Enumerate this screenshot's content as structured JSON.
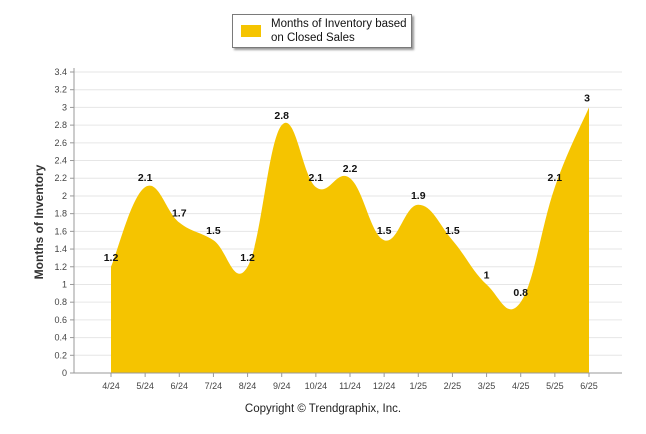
{
  "chart_data": {
    "type": "area",
    "categories": [
      "4/24",
      "5/24",
      "6/24",
      "7/24",
      "8/24",
      "9/24",
      "10/24",
      "11/24",
      "12/24",
      "1/25",
      "2/25",
      "3/25",
      "4/25",
      "5/25",
      "6/25"
    ],
    "series": [
      {
        "name": "Months of Inventory based on Closed Sales",
        "values": [
          1.2,
          2.1,
          1.7,
          1.5,
          1.2,
          2.8,
          2.1,
          2.2,
          1.5,
          1.9,
          1.5,
          1,
          0.8,
          2.1,
          3
        ],
        "labels": [
          "1.2",
          "2.1",
          "1.7",
          "1.5",
          "1.2",
          "2.8",
          "2.1",
          "2.2",
          "1.5",
          "1.9",
          "1.5",
          "1",
          "0.8",
          "2.1",
          "3"
        ],
        "color": "#f5c400"
      }
    ],
    "yticks": [
      "0",
      "0.2",
      "0.4",
      "0.6",
      "0.8",
      "1",
      "1.2",
      "1.4",
      "1.6",
      "1.8",
      "2",
      "2.2",
      "2.4",
      "2.6",
      "2.8",
      "3",
      "3.2",
      "3.4"
    ],
    "ylim": [
      0,
      3.4
    ],
    "ylabel": "Months of Inventory",
    "xlabel": "",
    "grid": true,
    "legend": "top-center"
  },
  "legend": {
    "line1": "Months of Inventory based",
    "line2": "on Closed Sales"
  },
  "footer": {
    "copyright": "Copyright © Trendgraphix, Inc."
  }
}
